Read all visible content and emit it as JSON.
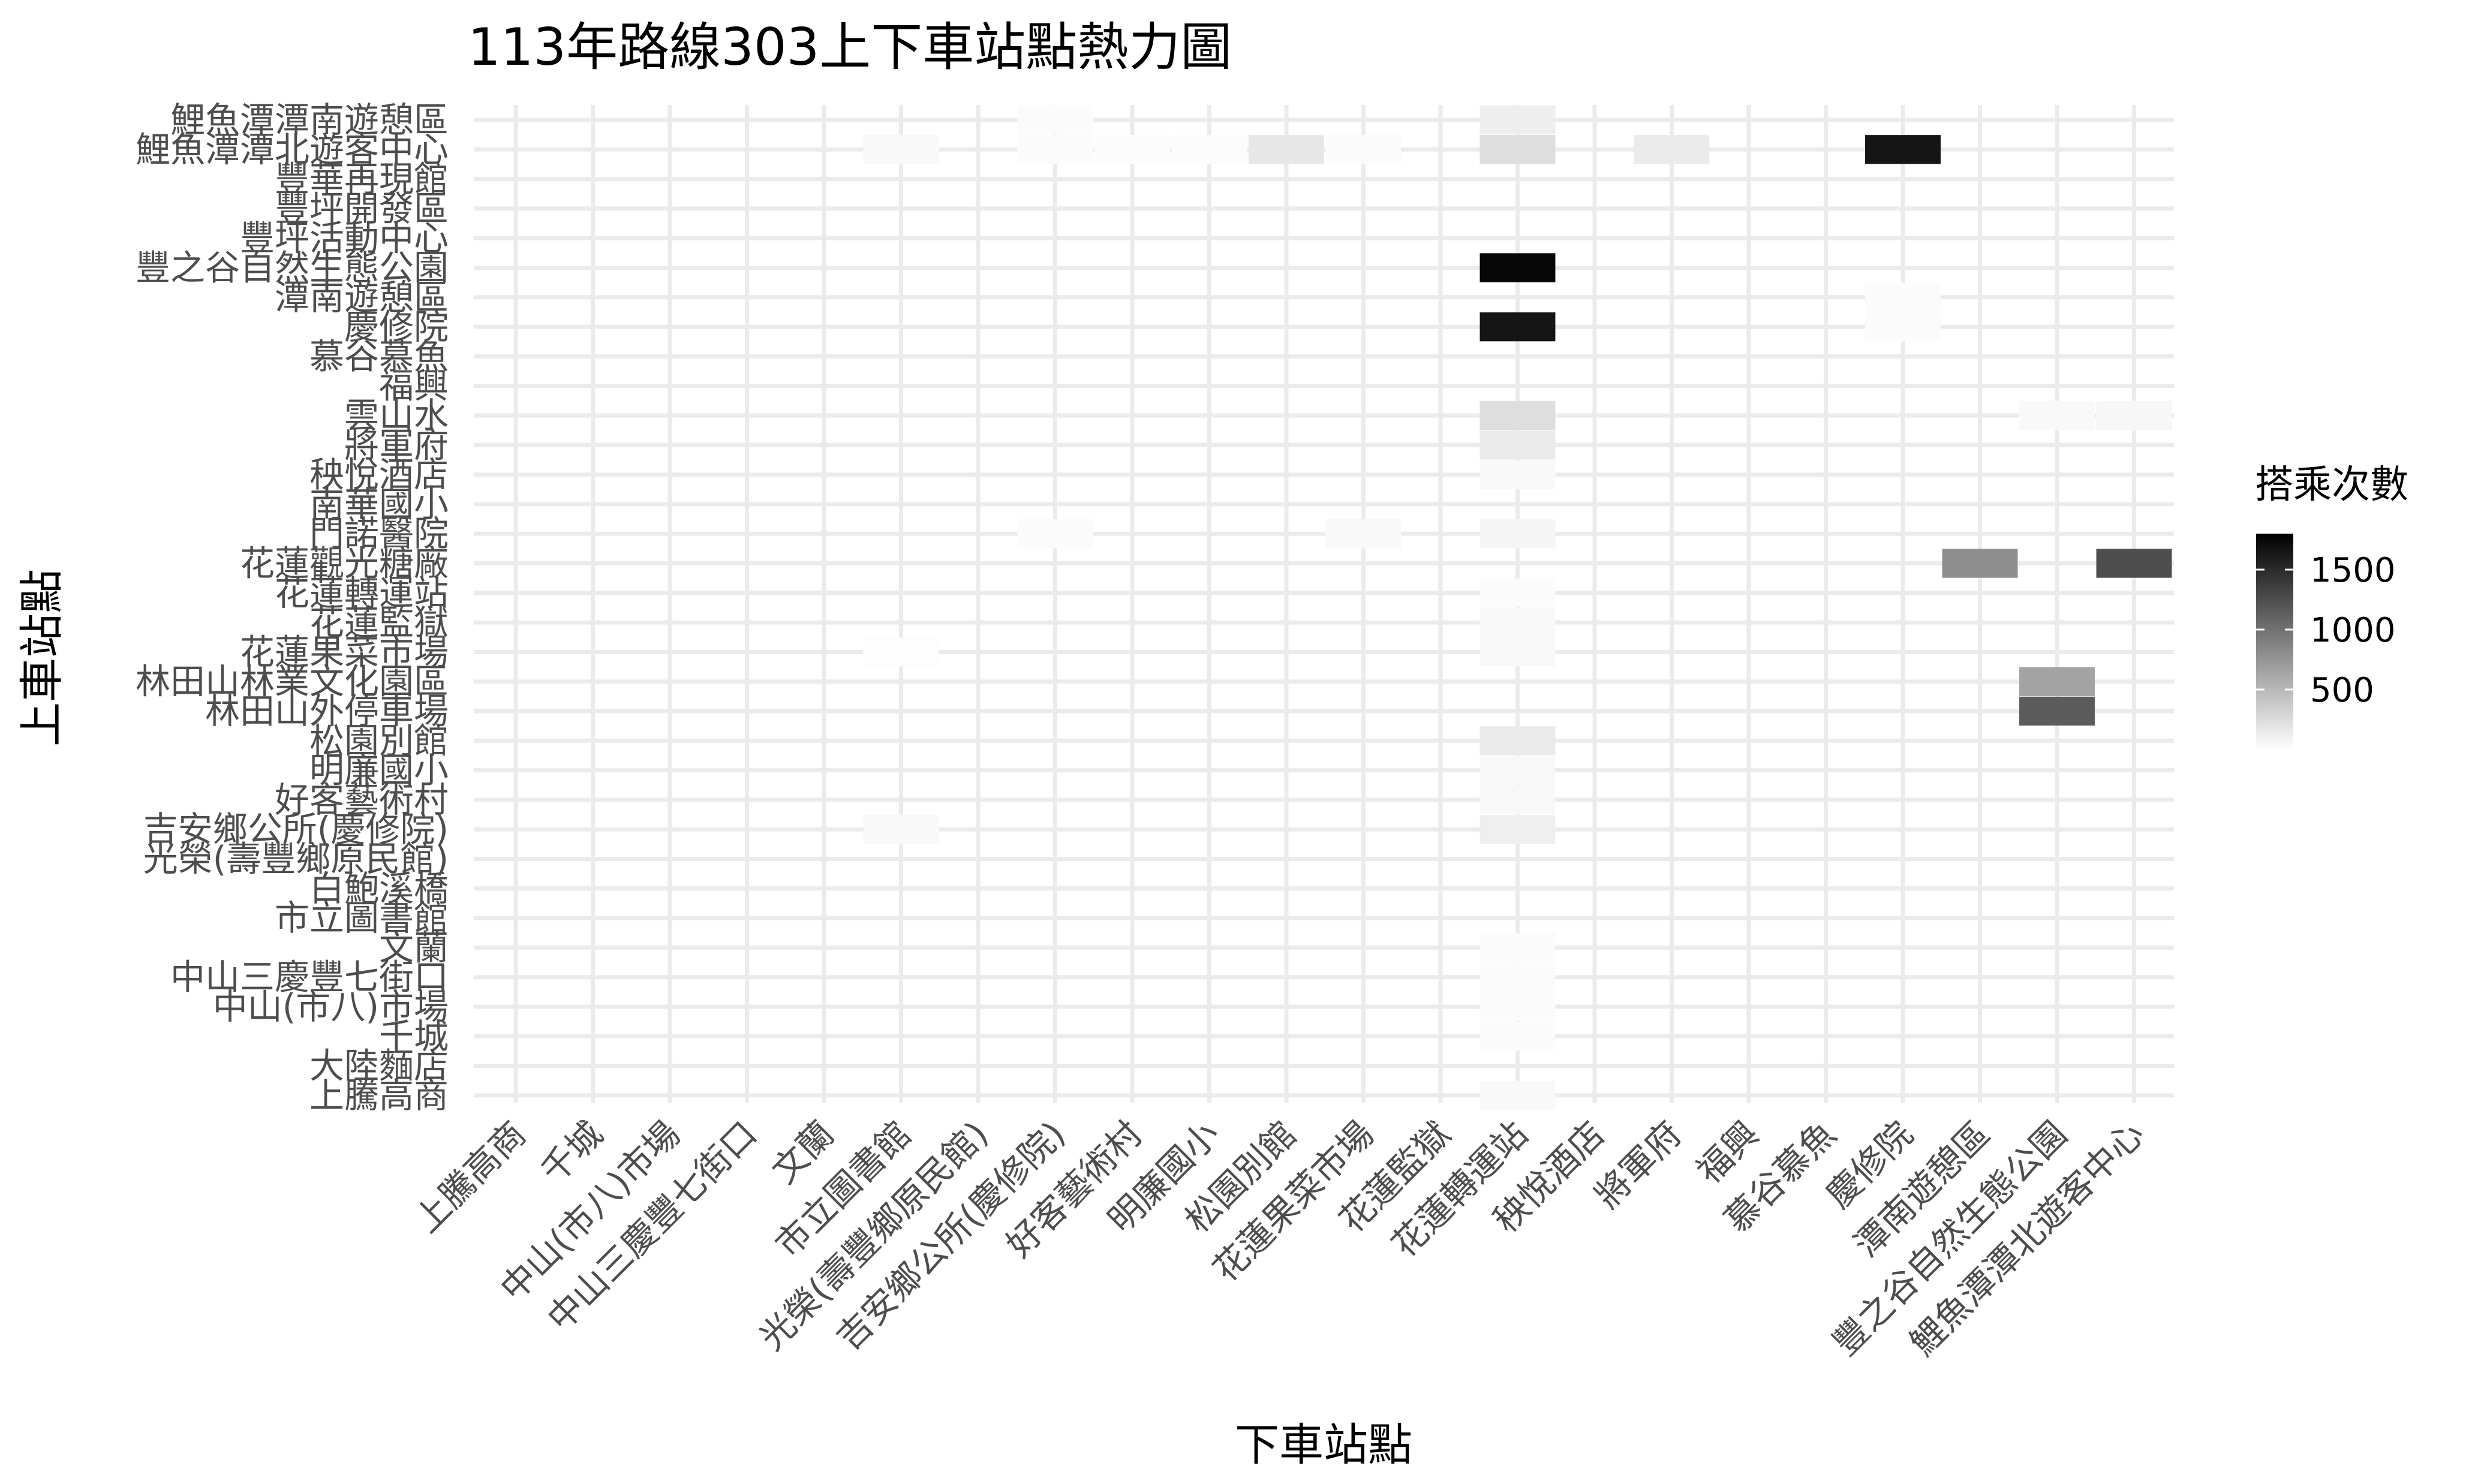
{
  "chart_data": {
    "type": "heatmap",
    "title": "113年路線303上下車站點熱力圖",
    "xlabel": "下車站點",
    "ylabel": "上車站點",
    "x_categories": [
      "上騰高商",
      "千城",
      "中山(市八)市場",
      "中山三慶豐七街口",
      "文蘭",
      "市立圖書館",
      "光榮(壽豐鄉原民館)",
      "吉安鄉公所(慶修院)",
      "好客藝術村",
      "明廉國小",
      "松園別館",
      "花蓮果菜市場",
      "花蓮監獄",
      "花蓮轉運站",
      "秧悅酒店",
      "將軍府",
      "福興",
      "慕谷慕魚",
      "慶修院",
      "潭南遊憩區",
      "豐之谷自然生態公園",
      "鯉魚潭潭北遊客中心"
    ],
    "y_categories": [
      "上騰高商",
      "大陸麵店",
      "千城",
      "中山(市八)市場",
      "中山三慶豐七街口",
      "文蘭",
      "市立圖書館",
      "白鮑溪橋",
      "光榮(壽豐鄉原民館)",
      "吉安鄉公所(慶修院)",
      "好客藝術村",
      "明廉國小",
      "松園別館",
      "林田山外停車場",
      "林田山林業文化園區",
      "花蓮果菜市場",
      "花蓮監獄",
      "花蓮轉運站",
      "花蓮觀光糖廠",
      "門諾醫院",
      "南華國小",
      "秧悅酒店",
      "將軍府",
      "雲山水",
      "福興",
      "慕谷慕魚",
      "慶修院",
      "潭南遊憩區",
      "豐之谷自然生態公園",
      "豐坪活動中心",
      "豐坪開發區",
      "豐華再現館",
      "鯉魚潭潭北遊客中心",
      "鯉魚潭潭南遊憩區"
    ],
    "cells": [
      {
        "x": "慶修院",
        "y": "鯉魚潭潭北遊客中心",
        "value": 1650
      },
      {
        "x": "花蓮轉運站",
        "y": "豐之谷自然生態公園",
        "value": 1750
      },
      {
        "x": "花蓮轉運站",
        "y": "慶修院",
        "value": 1650
      },
      {
        "x": "鯉魚潭潭北遊客中心",
        "y": "花蓮觀光糖廠",
        "value": 1250
      },
      {
        "x": "潭南遊憩區",
        "y": "花蓮觀光糖廠",
        "value": 800
      },
      {
        "x": "豐之谷自然生態公園",
        "y": "林田山林業文化園區",
        "value": 650
      },
      {
        "x": "豐之谷自然生態公園",
        "y": "林田山外停車場",
        "value": 1150
      },
      {
        "x": "花蓮轉運站",
        "y": "鯉魚潭潭南遊憩區",
        "value": 120
      },
      {
        "x": "花蓮轉運站",
        "y": "鯉魚潭潭北遊客中心",
        "value": 230
      },
      {
        "x": "松園別館",
        "y": "鯉魚潭潭北遊客中心",
        "value": 170
      },
      {
        "x": "將軍府",
        "y": "鯉魚潭潭北遊客中心",
        "value": 140
      },
      {
        "x": "市立圖書館",
        "y": "鯉魚潭潭北遊客中心",
        "value": 40
      },
      {
        "x": "吉安鄉公所(慶修院)",
        "y": "鯉魚潭潭南遊憩區",
        "value": 30
      },
      {
        "x": "吉安鄉公所(慶修院)",
        "y": "鯉魚潭潭北遊客中心",
        "value": 30
      },
      {
        "x": "花蓮果菜市場",
        "y": "鯉魚潭潭北遊客中心",
        "value": 30
      },
      {
        "x": "花蓮轉運站",
        "y": "雲山水",
        "value": 230
      },
      {
        "x": "花蓮轉運站",
        "y": "將軍府",
        "value": 150
      },
      {
        "x": "花蓮轉運站",
        "y": "秧悅酒店",
        "value": 40
      },
      {
        "x": "花蓮轉運站",
        "y": "門諾醫院",
        "value": 70
      },
      {
        "x": "花蓮轉運站",
        "y": "松園別館",
        "value": 150
      },
      {
        "x": "花蓮轉運站",
        "y": "吉安鄉公所(慶修院)",
        "value": 110
      },
      {
        "x": "花蓮轉運站",
        "y": "明廉國小",
        "value": 50
      },
      {
        "x": "花蓮轉運站",
        "y": "好客藝術村",
        "value": 50
      },
      {
        "x": "花蓮轉運站",
        "y": "花蓮監獄",
        "value": 40
      },
      {
        "x": "花蓮轉運站",
        "y": "花蓮轉運站",
        "value": 30
      },
      {
        "x": "花蓮轉運站",
        "y": "花蓮果菜市場",
        "value": 40
      },
      {
        "x": "花蓮轉運站",
        "y": "上騰高商",
        "value": 40
      },
      {
        "x": "花蓮轉運站",
        "y": "中山三慶豐七街口",
        "value": 30
      },
      {
        "x": "花蓮轉運站",
        "y": "千城",
        "value": 25
      },
      {
        "x": "花蓮轉運站",
        "y": "文蘭",
        "value": 25
      },
      {
        "x": "花蓮轉運站",
        "y": "中山(市八)市場",
        "value": 25
      },
      {
        "x": "市立圖書館",
        "y": "吉安鄉公所(慶修院)",
        "value": 40
      },
      {
        "x": "花蓮果菜市場",
        "y": "門諾醫院",
        "value": 40
      },
      {
        "x": "吉安鄉公所(慶修院)",
        "y": "門諾醫院",
        "value": 25
      },
      {
        "x": "鯉魚潭潭北遊客中心",
        "y": "雲山水",
        "value": 60
      },
      {
        "x": "豐之谷自然生態公園",
        "y": "雲山水",
        "value": 40
      },
      {
        "x": "慶修院",
        "y": "慶修院",
        "value": 30
      },
      {
        "x": "慶修院",
        "y": "潭南遊憩區",
        "value": 30
      },
      {
        "x": "好客藝術村",
        "y": "鯉魚潭潭北遊客中心",
        "value": 20
      },
      {
        "x": "明廉國小",
        "y": "鯉魚潭潭北遊客中心",
        "value": 20
      },
      {
        "x": "市立圖書館",
        "y": "花蓮果菜市場",
        "value": 15
      }
    ],
    "value_range": [
      0,
      1800
    ],
    "grid": true,
    "legend": {
      "title": "搭乘次數",
      "ticks": [
        500,
        1000,
        1500
      ],
      "tick_labels": [
        "500",
        "1000",
        "1500"
      ],
      "low_color": "#ffffff",
      "high_color": "#000000",
      "placement": "right"
    },
    "colors": {
      "grid": "#ebebeb",
      "tick_text": "#4d4d4d"
    }
  }
}
